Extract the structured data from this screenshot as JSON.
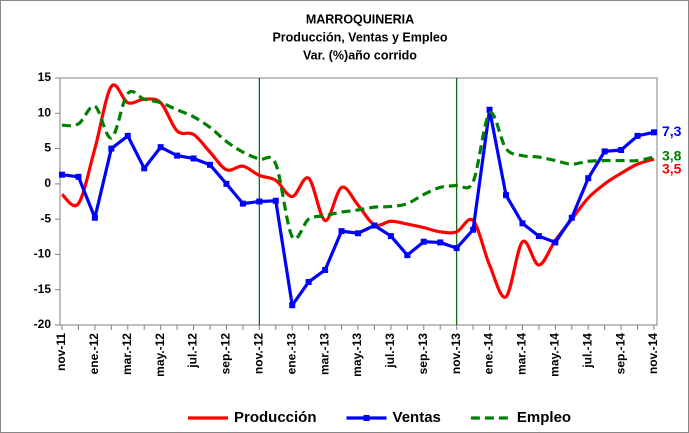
{
  "chart_data": {
    "type": "line",
    "title": [
      "MARROQUINERIA",
      "Producción, Ventas y Empleo",
      "Var. (%)año corrido"
    ],
    "categories": [
      "nov-11",
      null,
      "ene.-12",
      null,
      "mar.-12",
      null,
      "may.-12",
      null,
      "jul.-12",
      null,
      "sep.-12",
      null,
      "nov.-12",
      null,
      "ene.-13",
      null,
      "mar.-13",
      null,
      "may.-13",
      null,
      "jul.-13",
      null,
      "sep.-13",
      null,
      "nov.-13",
      null,
      "ene.-14",
      null,
      "mar.-14",
      null,
      "may.-14",
      null,
      "jul.-14",
      null,
      "sep.-14",
      null,
      "nov.-14"
    ],
    "series": [
      {
        "name": "Producción",
        "color": "#ff0000",
        "style": "solid",
        "smooth": true,
        "markers": false,
        "values": [
          -1.5,
          -2.8,
          5,
          13.8,
          11.5,
          12,
          11.5,
          7.5,
          7,
          4.5,
          2,
          2.5,
          1.2,
          0.5,
          -1.8,
          0.8,
          -5.2,
          -0.5,
          -3,
          -5.8,
          -5.3,
          -5.7,
          -6.2,
          -6.8,
          -6.8,
          -5.2,
          -11.5,
          -16,
          -8.2,
          -11.5,
          -8,
          -5,
          -2,
          0,
          1.5,
          2.8,
          3.5
        ],
        "value_labels": [
          null,
          null,
          null,
          null,
          null,
          null,
          null,
          null,
          null,
          null,
          null,
          null,
          null,
          null,
          null,
          null,
          null,
          null,
          null,
          null,
          null,
          null,
          null,
          null,
          null,
          null,
          null,
          null,
          null,
          null,
          null,
          null,
          null,
          null,
          null,
          null,
          "3,5"
        ]
      },
      {
        "name": "Ventas",
        "color": "#0000ff",
        "style": "solid",
        "smooth": false,
        "markers": true,
        "values": [
          1.3,
          1.0,
          -4.8,
          5.0,
          6.8,
          2.2,
          5.2,
          4.0,
          3.6,
          2.7,
          0.0,
          -2.8,
          -2.5,
          -2.4,
          -17.2,
          -13.9,
          -12.2,
          -6.7,
          -7.0,
          -5.9,
          -7.4,
          -10.1,
          -8.2,
          -8.3,
          -9.1,
          -6.5,
          10.5,
          -1.6,
          -5.6,
          -7.4,
          -8.3,
          -4.8,
          0.8,
          4.6,
          4.8,
          6.8,
          7.3
        ],
        "value_labels": [
          null,
          null,
          null,
          null,
          null,
          null,
          null,
          null,
          null,
          null,
          null,
          null,
          null,
          null,
          null,
          null,
          null,
          null,
          null,
          null,
          null,
          null,
          null,
          null,
          null,
          null,
          null,
          null,
          null,
          null,
          null,
          null,
          null,
          null,
          null,
          null,
          "7,3"
        ]
      },
      {
        "name": "Empleo",
        "color": "#008000",
        "style": "dashed",
        "smooth": true,
        "markers": false,
        "values": [
          8.3,
          8.5,
          11,
          6.5,
          12.8,
          12,
          11.5,
          10.5,
          9.5,
          8,
          6,
          4.5,
          3.5,
          2.8,
          -7.5,
          -5,
          -4.5,
          -4,
          -3.7,
          -3.3,
          -3.2,
          -2.8,
          -1.5,
          -0.5,
          -0.2,
          0.3,
          10,
          5,
          4,
          3.8,
          3.3,
          2.8,
          3.2,
          3.3,
          3.3,
          3.3,
          3.8
        ],
        "value_labels": [
          null,
          null,
          null,
          null,
          null,
          null,
          null,
          null,
          null,
          null,
          null,
          null,
          null,
          null,
          null,
          null,
          null,
          null,
          null,
          null,
          null,
          null,
          null,
          null,
          null,
          null,
          null,
          null,
          null,
          null,
          null,
          null,
          null,
          null,
          null,
          null,
          "3,8"
        ]
      }
    ],
    "ylim": [
      -20,
      15
    ],
    "yticks": [
      -20,
      -15,
      -10,
      -5,
      0,
      5,
      10,
      15
    ],
    "reference_lines": [
      "nov.-12",
      "nov.-13"
    ],
    "reference_color": "#006400",
    "grid": false,
    "legend": "bottom"
  }
}
